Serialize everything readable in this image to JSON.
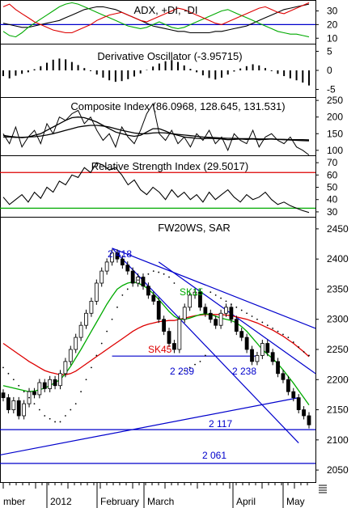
{
  "chart_data": [
    {
      "type": "line",
      "panel": "adx",
      "title": "ADX, +DI, -DI",
      "y_ticks": [
        10,
        20,
        30
      ],
      "ylim": [
        6,
        38
      ],
      "hline": 20,
      "series": [
        {
          "name": "ADX",
          "color": "#000000",
          "values": [
            21,
            20,
            19,
            18,
            18,
            19,
            20,
            21,
            22,
            23,
            25,
            27,
            29,
            31,
            32,
            33,
            33,
            32,
            31,
            29,
            27,
            25,
            23,
            21,
            19,
            18,
            17,
            16,
            15,
            15,
            14,
            14,
            14,
            14,
            15,
            15,
            16,
            17,
            18,
            19,
            21,
            23,
            25,
            27,
            29,
            31,
            32,
            33,
            34,
            35
          ]
        },
        {
          "name": "+DI",
          "color": "#00aa00",
          "values": [
            15,
            12,
            11,
            14,
            18,
            21,
            24,
            27,
            30,
            33,
            35,
            36,
            35,
            33,
            31,
            29,
            27,
            25,
            23,
            21,
            19,
            18,
            17,
            18,
            20,
            22,
            20,
            18,
            17,
            18,
            20,
            22,
            24,
            26,
            28,
            30,
            31,
            29,
            27,
            25,
            23,
            21,
            19,
            17,
            15,
            14,
            13,
            13,
            12,
            11
          ]
        },
        {
          "name": "-DI",
          "color": "#dd0000",
          "values": [
            33,
            35,
            31,
            28,
            25,
            22,
            20,
            18,
            16,
            15,
            14,
            14,
            16,
            18,
            20,
            23,
            25,
            27,
            28,
            29,
            27,
            25,
            23,
            22,
            24,
            26,
            28,
            30,
            32,
            31,
            29,
            27,
            25,
            23,
            21,
            20,
            22,
            24,
            26,
            28,
            30,
            32,
            33,
            31,
            29,
            28,
            30,
            32,
            34,
            36
          ]
        }
      ]
    },
    {
      "type": "bar",
      "panel": "deriv",
      "title": "Derivative Oscillator (-3.95715)",
      "y_ticks": [
        -5,
        0,
        5
      ],
      "ylim": [
        -7,
        7
      ],
      "values": [
        -1.5,
        -2.1,
        -1.4,
        -0.9,
        -0.5,
        0.3,
        1.1,
        2.0,
        2.8,
        3.1,
        2.9,
        2.2,
        1.4,
        0.6,
        -0.2,
        -1.1,
        -1.9,
        -2.6,
        -3.0,
        -2.8,
        -2.3,
        -1.6,
        -0.8,
        0.1,
        1.0,
        1.8,
        2.4,
        2.7,
        2.2,
        1.3,
        0.4,
        -0.5,
        -1.3,
        -2.0,
        -2.4,
        -1.9,
        -1.1,
        -0.3,
        0.5,
        1.1,
        1.6,
        1.3,
        0.6,
        -0.2,
        -0.9,
        -1.5,
        -2.1,
        -2.6,
        -3.2,
        -3.96
      ]
    },
    {
      "type": "line",
      "panel": "composite",
      "title": "Composite Index (86.0968, 128.645, 131.531)",
      "y_ticks": [
        100,
        150,
        200,
        250
      ],
      "ylim": [
        85,
        260
      ],
      "series": [
        {
          "name": "Composite",
          "color": "#000000",
          "values": [
            150,
            120,
            170,
            110,
            140,
            160,
            120,
            180,
            150,
            200,
            190,
            210,
            220,
            180,
            200,
            160,
            130,
            150,
            110,
            170,
            140,
            120,
            160,
            210,
            240,
            150,
            130,
            160,
            120,
            140,
            110,
            150,
            130,
            160,
            120,
            140,
            100,
            150,
            130,
            120,
            160,
            110,
            140,
            150,
            130,
            120,
            140,
            110,
            100,
            86
          ]
        },
        {
          "name": "MA fast",
          "color": "#000000",
          "values": [
            145,
            142,
            140,
            138,
            140,
            145,
            150,
            160,
            170,
            180,
            190,
            198,
            200,
            198,
            192,
            185,
            175,
            165,
            155,
            150,
            145,
            142,
            145,
            155,
            165,
            165,
            158,
            150,
            145,
            140,
            138,
            136,
            135,
            136,
            135,
            134,
            132,
            133,
            134,
            133,
            134,
            132,
            133,
            134,
            133,
            132,
            131,
            130,
            129,
            128.6
          ]
        },
        {
          "name": "MA slow",
          "color": "#000000",
          "values": [
            140,
            140,
            139,
            139,
            140,
            141,
            143,
            146,
            150,
            155,
            160,
            165,
            170,
            173,
            175,
            175,
            173,
            170,
            165,
            160,
            156,
            152,
            150,
            150,
            152,
            153,
            152,
            150,
            148,
            146,
            144,
            142,
            140,
            139,
            138,
            137,
            136,
            136,
            135,
            135,
            135,
            134,
            134,
            134,
            133,
            133,
            132,
            132,
            132,
            131.5
          ]
        }
      ]
    },
    {
      "type": "line",
      "panel": "rsi",
      "title": "Relative Strength Index (29.5017)",
      "y_ticks": [
        30,
        40,
        50,
        60,
        70
      ],
      "ylim": [
        26,
        76
      ],
      "hlines": [
        {
          "value": 62,
          "color": "#dd0000"
        },
        {
          "value": 33,
          "color": "#00aa00"
        }
      ],
      "series": [
        {
          "name": "RSI",
          "color": "#000000",
          "values": [
            42,
            36,
            40,
            44,
            38,
            46,
            41,
            50,
            46,
            55,
            52,
            60,
            58,
            66,
            62,
            70,
            68,
            64,
            66,
            60,
            52,
            56,
            48,
            44,
            50,
            46,
            40,
            48,
            42,
            46,
            40,
            44,
            38,
            46,
            40,
            44,
            48,
            42,
            38,
            44,
            40,
            42,
            46,
            40,
            36,
            38,
            35,
            33,
            31,
            29.5
          ]
        }
      ]
    },
    {
      "type": "candlestick",
      "panel": "price",
      "title": "FW20WS, SAR",
      "y_ticks": [
        2050,
        2100,
        2150,
        2200,
        2250,
        2300,
        2350,
        2400,
        2450
      ],
      "ylim": [
        2030,
        2470
      ],
      "x_labels": [
        "mber",
        "2012",
        "February",
        "March",
        "April",
        "May"
      ],
      "close": [
        2170,
        2150,
        2165,
        2140,
        2160,
        2180,
        2175,
        2195,
        2185,
        2200,
        2190,
        2210,
        2230,
        2250,
        2270,
        2290,
        2310,
        2330,
        2360,
        2380,
        2395,
        2410,
        2400,
        2390,
        2380,
        2360,
        2370,
        2355,
        2340,
        2330,
        2300,
        2280,
        2260,
        2250,
        2300,
        2320,
        2340,
        2345,
        2320,
        2310,
        2300,
        2290,
        2310,
        2320,
        2300,
        2280,
        2270,
        2250,
        2230,
        2240,
        2260,
        2245,
        2230,
        2210,
        2200,
        2180,
        2170,
        2150,
        2140,
        2125
      ],
      "sma_green": [
        2190,
        2188,
        2186,
        2184,
        2182,
        2180,
        2181,
        2183,
        2186,
        2190,
        2195,
        2200,
        2210,
        2222,
        2236,
        2250,
        2265,
        2280,
        2295,
        2310,
        2325,
        2338,
        2350,
        2356,
        2360,
        2362,
        2360,
        2356,
        2350,
        2342,
        2333,
        2323,
        2313,
        2305,
        2300,
        2300,
        2302,
        2305,
        2308,
        2309,
        2308,
        2305,
        2302,
        2300,
        2298,
        2294,
        2288,
        2280,
        2270,
        2260,
        2250,
        2242,
        2235,
        2226,
        2216,
        2205,
        2194,
        2182,
        2170,
        2158
      ],
      "sma_red": [
        2260,
        2254,
        2248,
        2242,
        2236,
        2230,
        2225,
        2220,
        2215,
        2212,
        2210,
        2208,
        2208,
        2210,
        2214,
        2220,
        2226,
        2232,
        2238,
        2244,
        2250,
        2256,
        2262,
        2268,
        2274,
        2280,
        2285,
        2289,
        2292,
        2294,
        2296,
        2297,
        2298,
        2298,
        2300,
        2302,
        2304,
        2306,
        2307,
        2308,
        2308,
        2308,
        2308,
        2307,
        2306,
        2304,
        2302,
        2300,
        2297,
        2294,
        2290,
        2286,
        2282,
        2277,
        2272,
        2266,
        2260,
        2253,
        2246,
        2238
      ],
      "sar": [
        2220,
        2210,
        2200,
        2190,
        2180,
        2170,
        2160,
        2150,
        2140,
        2135,
        2130,
        2130,
        2140,
        2150,
        2160,
        2180,
        2200,
        2220,
        2240,
        2260,
        2280,
        2300,
        2320,
        2340,
        2350,
        2360,
        2365,
        2370,
        2375,
        2380,
        2378,
        2375,
        2370,
        2360,
        2210,
        2215,
        2220,
        2225,
        2230,
        2240,
        2345,
        2340,
        2335,
        2330,
        2325,
        2320,
        2315,
        2310,
        2305,
        2300,
        2295,
        2290,
        2285,
        2280,
        2275,
        2270,
        2262,
        2254,
        2246,
        2240
      ],
      "series_labels": [
        {
          "name": "SK15",
          "color": "#00aa00"
        },
        {
          "name": "SK45",
          "color": "#dd0000"
        }
      ],
      "annotations": [
        "2 418",
        "2 239",
        "2 238",
        "2 117",
        "2 061"
      ],
      "hlines": [
        2239,
        2117,
        2061
      ]
    }
  ]
}
